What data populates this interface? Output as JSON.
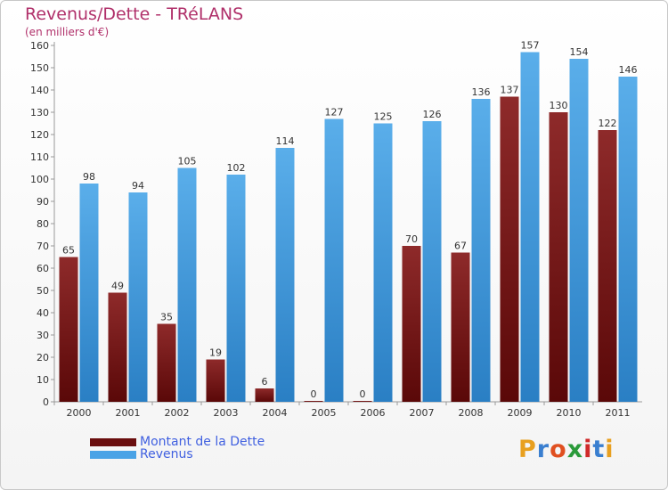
{
  "chart_data": {
    "type": "bar",
    "title": "Revenus/Dette - TRéLANS",
    "subtitle": "(en milliers d'€)",
    "categories": [
      "2000",
      "2001",
      "2002",
      "2003",
      "2004",
      "2005",
      "2006",
      "2007",
      "2008",
      "2009",
      "2010",
      "2011"
    ],
    "series": [
      {
        "name": "Montant de la Dette",
        "color": "#7a1a1a",
        "values": [
          65,
          49,
          35,
          19,
          6,
          0,
          0,
          70,
          67,
          137,
          130,
          122
        ]
      },
      {
        "name": "Revenus",
        "color": "#4aa3e6",
        "values": [
          98,
          94,
          105,
          102,
          114,
          127,
          125,
          126,
          136,
          157,
          154,
          146
        ]
      }
    ],
    "ylim": [
      0,
      160
    ],
    "yticks": [
      0,
      10,
      20,
      30,
      40,
      50,
      60,
      70,
      80,
      90,
      100,
      110,
      120,
      130,
      140,
      150,
      160
    ],
    "grid": false,
    "legend_position": "bottom-left"
  },
  "logo": {
    "text": "Proxiti",
    "letters": [
      "P",
      "r",
      "o",
      "x",
      "i",
      "t",
      "i"
    ],
    "colors": [
      "#e8a020",
      "#3a7fd0",
      "#e05020",
      "#2a9a3a",
      "#d02a2a",
      "#3a7fd0",
      "#e8a020"
    ]
  }
}
